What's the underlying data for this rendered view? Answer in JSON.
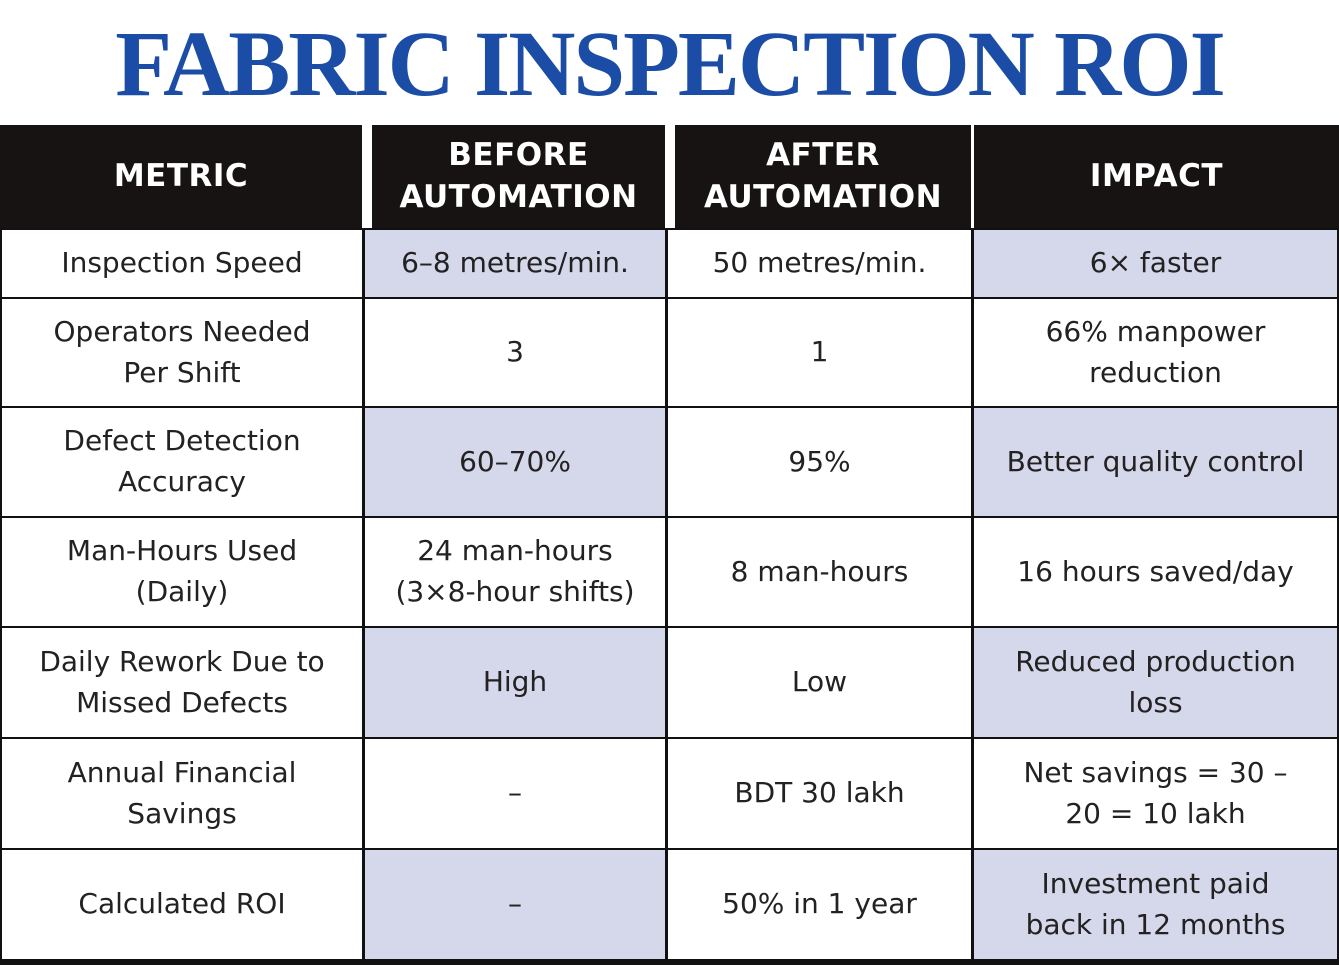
{
  "title": "FABRIC INSPECTION ROI",
  "colors": {
    "title_blue": "#1c4da6",
    "header_bg": "#171313",
    "header_text": "#ffffff",
    "shade": "#d5d8ea",
    "grid_line": "#111111",
    "body_text": "#232121",
    "page_bg": "#ffffff"
  },
  "table": {
    "headers": {
      "metric": "METRIC",
      "before": "BEFORE\nAUTOMATION",
      "after": "AFTER\nAUTOMATION",
      "impact": "IMPACT"
    },
    "rows": [
      {
        "metric": "Inspection Speed",
        "before": "6–8 metres/min.",
        "after": "50 metres/min.",
        "impact": "6× faster"
      },
      {
        "metric": "Operators Needed\nPer Shift",
        "before": "3",
        "after": "1",
        "impact": "66% manpower\nreduction"
      },
      {
        "metric": "Defect Detection\nAccuracy",
        "before": "60–70%",
        "after": "95%",
        "impact": "Better quality control"
      },
      {
        "metric": "Man-Hours Used\n(Daily)",
        "before": "24 man-hours\n(3×8-hour shifts)",
        "after": "8 man-hours",
        "impact": "16 hours saved/day"
      },
      {
        "metric": "Daily Rework Due to\nMissed Defects",
        "before": "High",
        "after": "Low",
        "impact": "Reduced production\nloss"
      },
      {
        "metric": "Annual Financial\nSavings",
        "before": "–",
        "after": "BDT 30 lakh",
        "impact": "Net savings = 30 –\n20 = 10 lakh"
      },
      {
        "metric": "Calculated ROI",
        "before": "–",
        "after": "50% in 1 year",
        "impact": "Investment paid\nback in 12 months"
      }
    ]
  },
  "chart_data": {
    "type": "table",
    "title": "FABRIC INSPECTION ROI",
    "columns": [
      "METRIC",
      "BEFORE AUTOMATION",
      "AFTER AUTOMATION",
      "IMPACT"
    ],
    "rows": [
      [
        "Inspection Speed",
        "6–8 metres/min.",
        "50 metres/min.",
        "6× faster"
      ],
      [
        "Operators Needed Per Shift",
        "3",
        "1",
        "66% manpower reduction"
      ],
      [
        "Defect Detection Accuracy",
        "60–70%",
        "95%",
        "Better quality control"
      ],
      [
        "Man-Hours Used (Daily)",
        "24 man-hours (3×8-hour shifts)",
        "8 man-hours",
        "16 hours saved/day"
      ],
      [
        "Daily Rework Due to Missed Defects",
        "High",
        "Low",
        "Reduced production loss"
      ],
      [
        "Annual Financial Savings",
        "–",
        "BDT 30 lakh",
        "Net savings = 30 – 20 = 10 lakh"
      ],
      [
        "Calculated ROI",
        "–",
        "50% in 1 year",
        "Investment paid back in 12 months"
      ]
    ],
    "layout_hints": {
      "shaded_rows_1_indexed": [
        1,
        3,
        5,
        7
      ],
      "shaded_columns_in_those_rows": [
        "BEFORE AUTOMATION",
        "IMPACT"
      ],
      "header_style": "black background, white bold text",
      "shade_color": "#d5d8ea"
    }
  }
}
